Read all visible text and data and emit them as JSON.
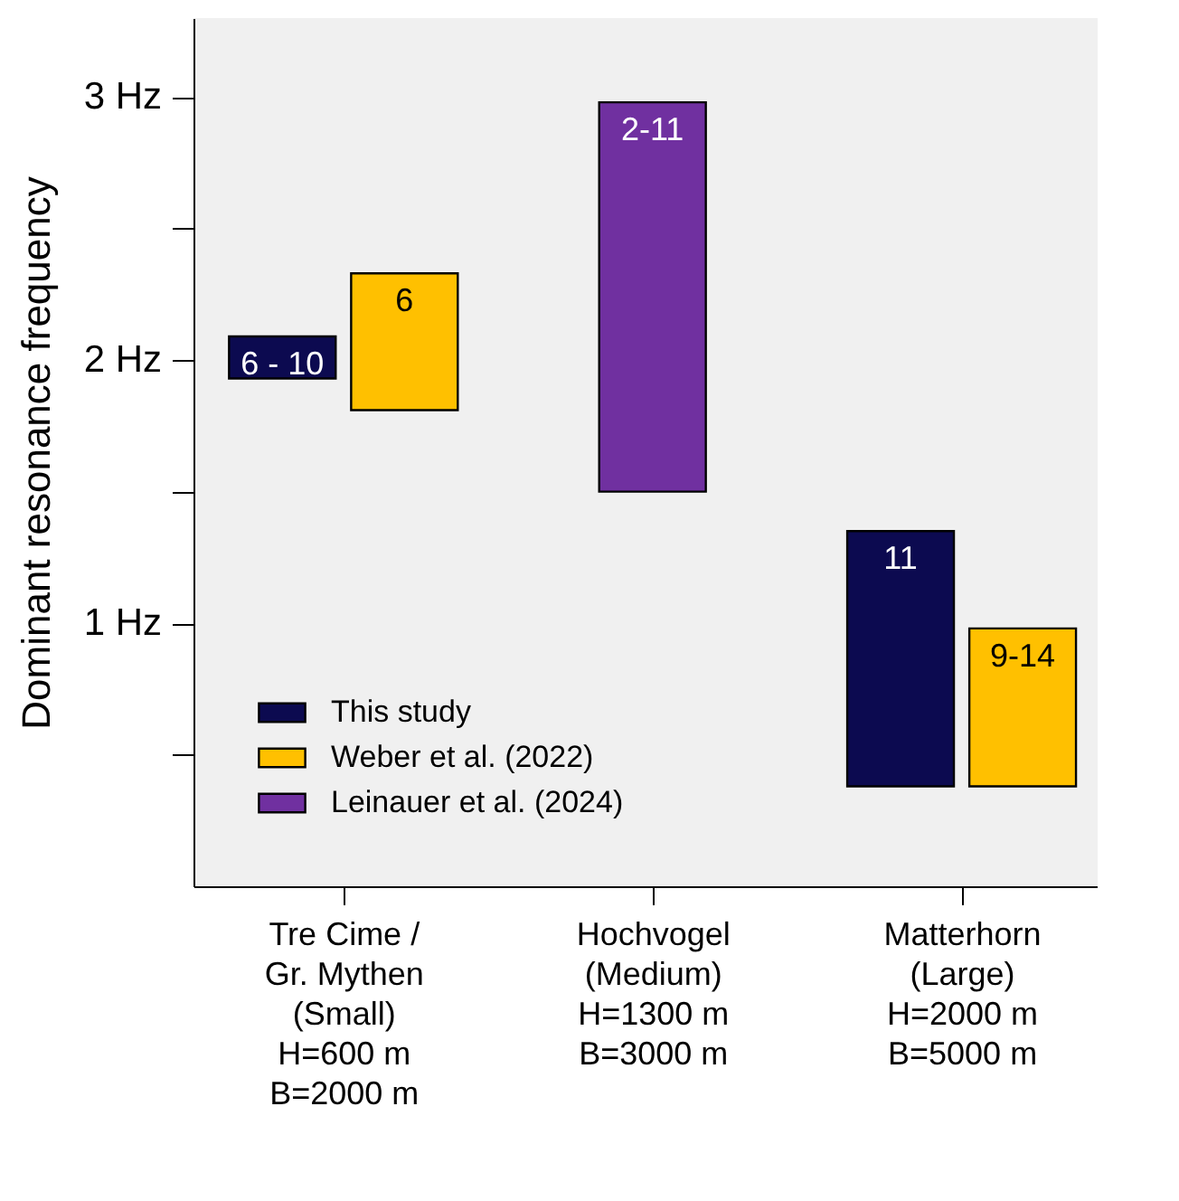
{
  "chart_data": {
    "type": "bar",
    "ylabel": "Dominant resonance frequency",
    "categories": [
      "Tre Cime /\nGr. Mythen\n(Small)\nH=600 m\nB=2000 m",
      "Hochvogel\n(Medium)\nH=1300 m\nB=3000 m",
      "Matterhorn\n(Large)\nH=2000 m\nB=5000 m"
    ],
    "series": [
      {
        "name": "This study",
        "color": "#0c0a50",
        "values": [
          0.16,
          null,
          0.97
        ],
        "base": [
          1.93,
          null,
          0.38
        ]
      },
      {
        "name": "Weber et al. (2022)",
        "color": "#ffc000",
        "values": [
          0.52,
          null,
          0.6
        ],
        "base": [
          1.81,
          null,
          0.38
        ]
      },
      {
        "name": "Leinauer et al. (2024)",
        "color": "#7030a0",
        "values": [
          null,
          1.48,
          null
        ],
        "base": [
          null,
          1.5,
          null
        ]
      }
    ],
    "annotations": [
      {
        "text": "6 - 10",
        "x": "Tre Cime /\nGr. Mythen\n(Small)\nH=600 m\nB=2000 m",
        "y": 2.09
      },
      {
        "text": "6",
        "x": "Tre Cime /\nGr. Mythen\n(Small)\nH=600 m\nB=2000 m",
        "y": 2.33
      },
      {
        "text": "2-11",
        "x": "Hochvogel\n(Medium)\nH=1300 m\nB=3000 m",
        "y": 2.98
      },
      {
        "text": "11",
        "x": "Matterhorn\n(Large)\nH=2000 m\nB=5000 m",
        "y": 1.35
      },
      {
        "text": "9-14",
        "x": "Matterhorn\n(Large)\nH=2000 m\nB=5000 m",
        "y": 0.98
      }
    ],
    "ylim": [
      0,
      3.3
    ],
    "yticks": [
      {
        "value": 0.5,
        "label": null
      },
      {
        "value": 1,
        "label": "1 Hz"
      },
      {
        "value": 1.5,
        "label": null
      },
      {
        "value": 2,
        "label": "2 Hz"
      },
      {
        "value": 2.5,
        "label": null
      },
      {
        "value": 3,
        "label": "3 Hz"
      }
    ],
    "legend": "bottom left",
    "grid": false
  }
}
